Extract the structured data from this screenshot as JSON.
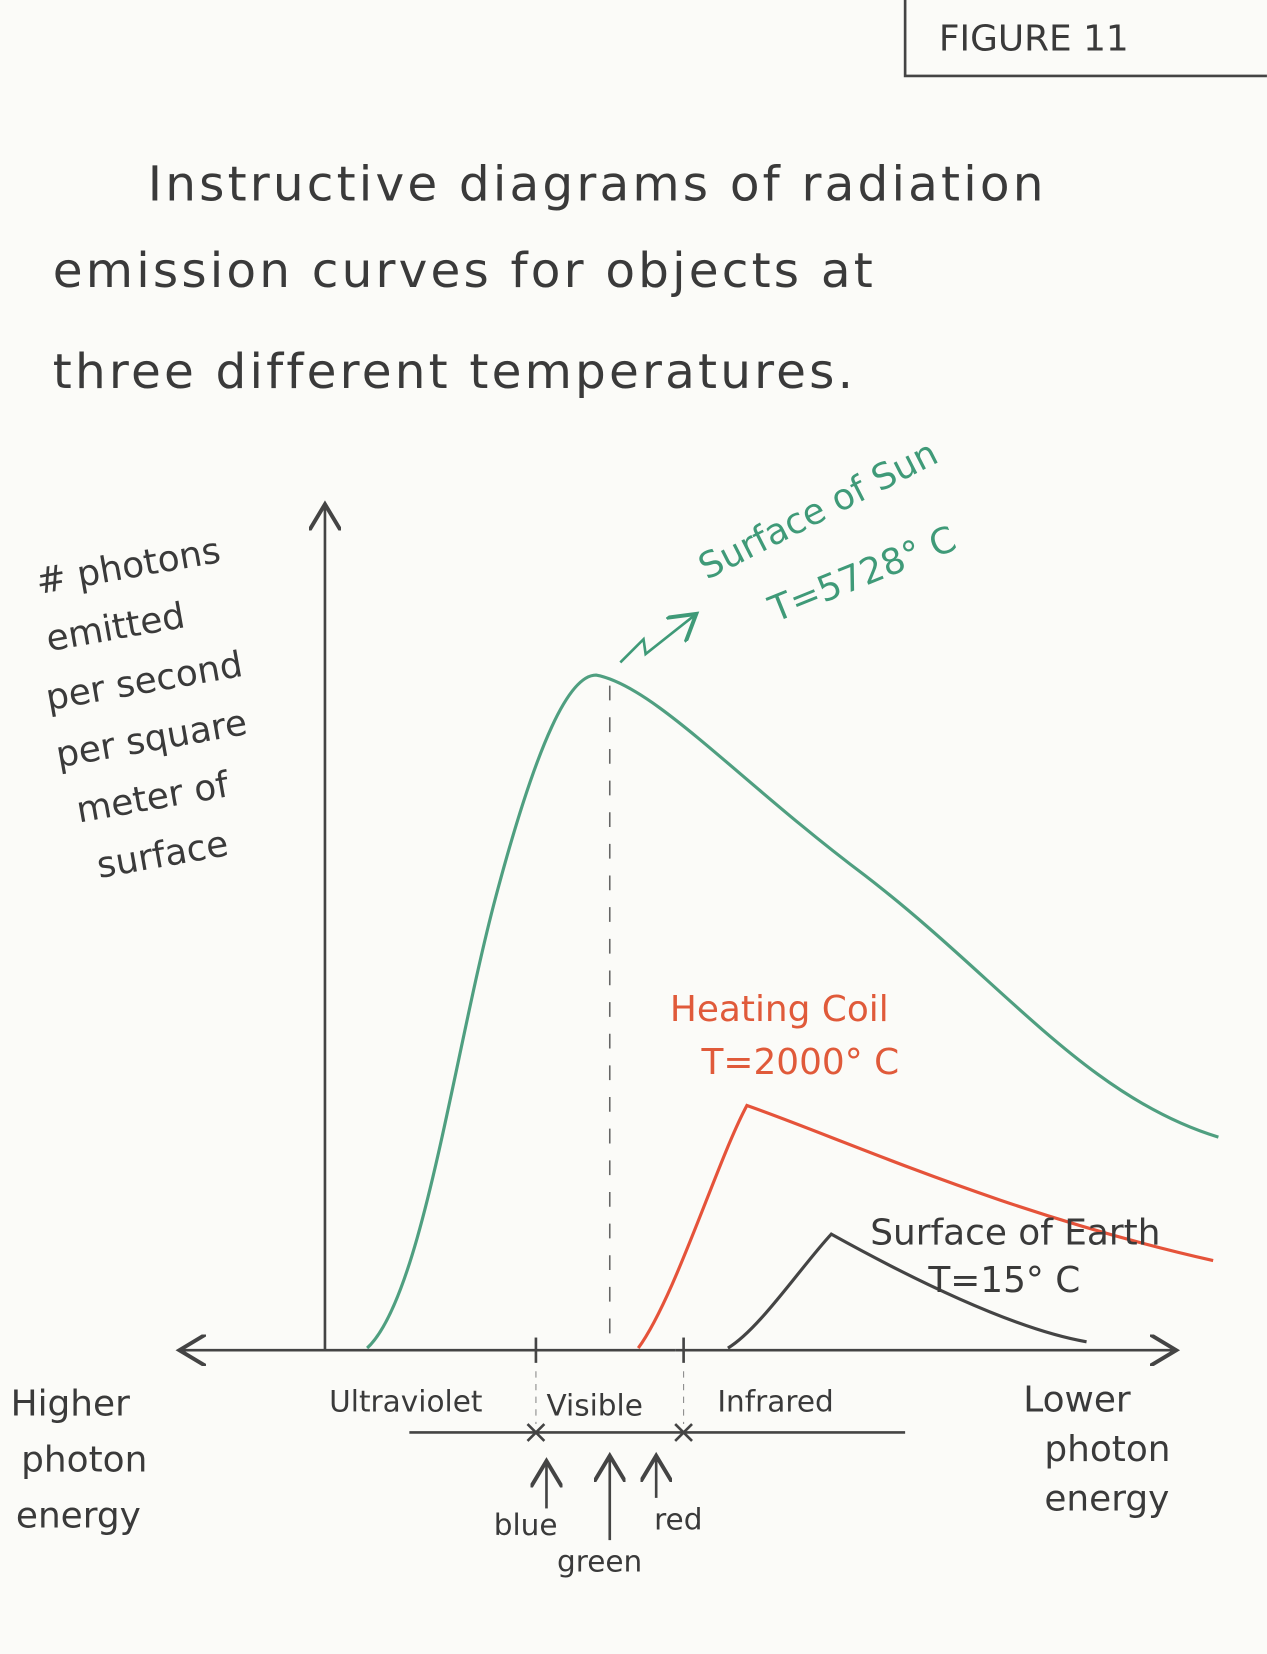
{
  "figure_label": "FIGURE 11",
  "title": [
    "Instructive diagrams of radiation",
    "emission curves for objects at",
    "three different temperatures."
  ],
  "y_axis_label": [
    "# photons",
    "emitted",
    "per second",
    "per square",
    "meter of",
    "surface"
  ],
  "left_label": [
    "Higher",
    "photon",
    "energy"
  ],
  "right_label": [
    "Lower",
    "photon",
    "energy"
  ],
  "curves": [
    {
      "name": "Surface of Sun",
      "temperature": "T=5728° C"
    },
    {
      "name": "Heating Coil",
      "temperature": "T=2000° C"
    },
    {
      "name": "Surface of Earth",
      "temperature": "T=15° C"
    }
  ],
  "bands": [
    "Ultraviolet",
    "Visible",
    "Infrared"
  ],
  "colors": [
    "blue",
    "green",
    "red"
  ]
}
